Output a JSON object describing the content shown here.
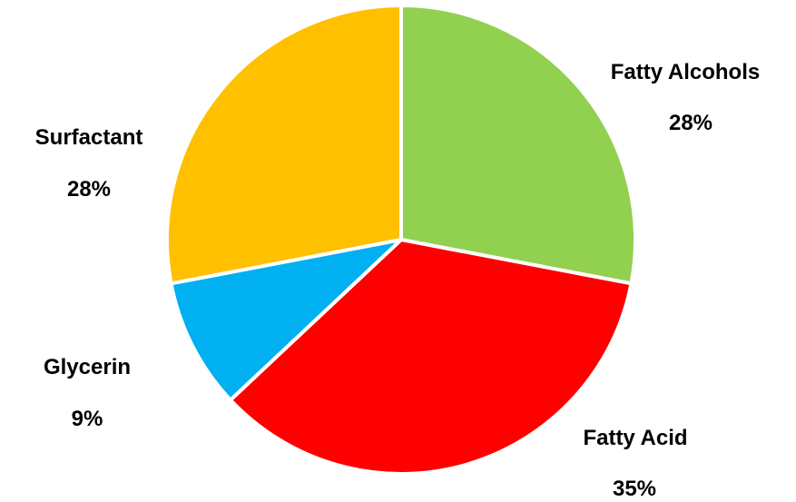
{
  "chart_data": {
    "type": "pie",
    "title": "",
    "legend": "none",
    "slices": [
      {
        "label": "Fatty Alcohols",
        "value": 28,
        "value_label": "28%",
        "color": "#92D050"
      },
      {
        "label": "Fatty Acid",
        "value": 35,
        "value_label": "35%",
        "color": "#FF0000"
      },
      {
        "label": "Glycerin",
        "value": 9,
        "value_label": "9%",
        "color": "#00B0F0"
      },
      {
        "label": "Surfactant",
        "value": 28,
        "value_label": "28%",
        "color": "#FFC000"
      }
    ]
  }
}
